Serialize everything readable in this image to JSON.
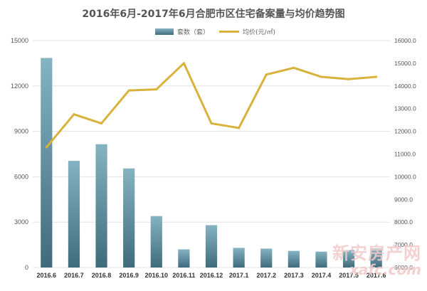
{
  "chart_data": {
    "type": "bar",
    "title": "2016年6月-2017年6月合肥市区住宅备案量与均价趋势图",
    "categories": [
      "2016.6",
      "2016.7",
      "2016.8",
      "2016.9",
      "2016.10",
      "2016.11",
      "2016.12",
      "2017.1",
      "2017.2",
      "2017.3",
      "2017.4",
      "2017.5",
      "2017.6"
    ],
    "series": [
      {
        "name": "套数（套）",
        "type": "bar",
        "axis": "left",
        "values": [
          13850,
          7050,
          8150,
          6550,
          3400,
          1200,
          2800,
          1300,
          1250,
          1100,
          1050,
          1150,
          1250
        ]
      },
      {
        "name": "均价(元/㎡)",
        "type": "line",
        "axis": "right",
        "values": [
          11300,
          12750,
          12350,
          13800,
          13850,
          15000,
          12350,
          12150,
          14500,
          14800,
          14400,
          14300,
          14400
        ]
      }
    ],
    "left_axis": {
      "ylim": [
        0,
        15000
      ],
      "ticks": [
        "0",
        "3000",
        "6000",
        "9000",
        "12000",
        "15000"
      ]
    },
    "right_axis": {
      "ylim": [
        6000,
        16000
      ],
      "ticks": [
        "6000.0",
        "7000.0",
        "8000.0",
        "9000.0",
        "10000.0",
        "11000.0",
        "12000.0",
        "13000.0",
        "14000.0",
        "15000.0",
        "16000.0"
      ]
    },
    "legend_position": "top-center",
    "grid": true,
    "colors": {
      "bar": "#6f9fb0",
      "bar_dark": "#3f6b7d",
      "line": "#d9b23c",
      "grid": "#e3e3e3",
      "title": "#555555"
    }
  },
  "watermark": {
    "text_cn": "新安房产网",
    "text_en": "xafc.com"
  }
}
